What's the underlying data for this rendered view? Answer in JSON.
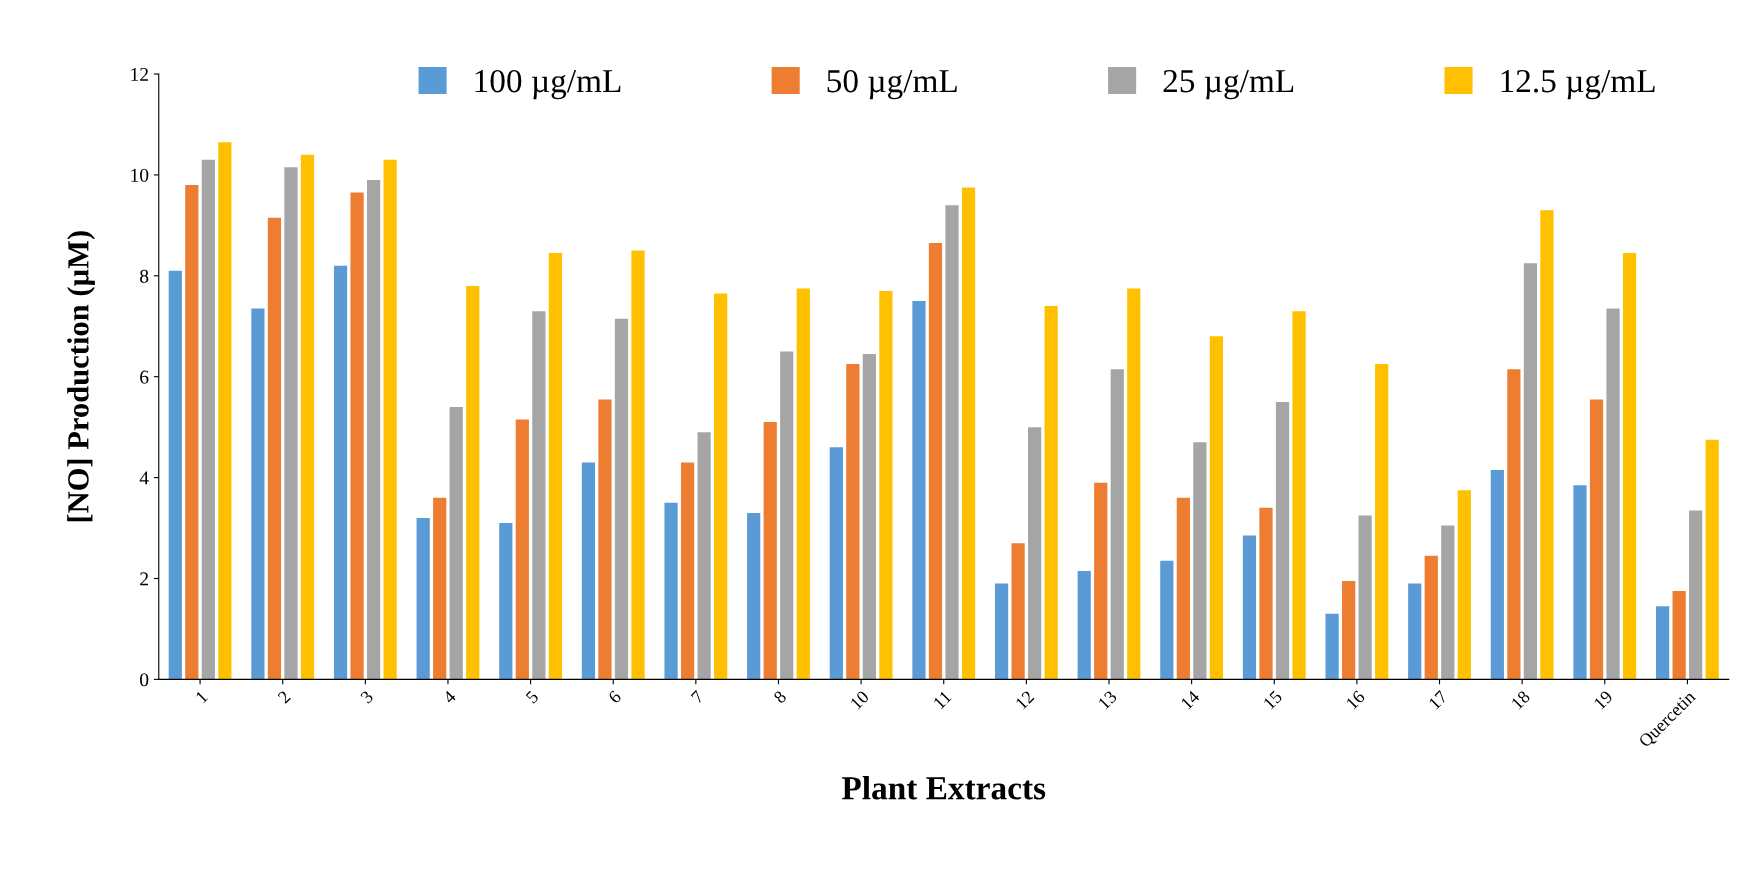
{
  "chart_data": {
    "type": "bar",
    "xlabel": "Plant Extracts",
    "ylabel": "[NO] Production (µM)",
    "categories": [
      "1",
      "2",
      "3",
      "4",
      "5",
      "6",
      "7",
      "8",
      "10",
      "11",
      "12",
      "13",
      "14",
      "15",
      "16",
      "17",
      "18",
      "19",
      "Quercetin"
    ],
    "series": [
      {
        "name": "100 µg/mL",
        "color": "#5b9bd5",
        "values": [
          8.1,
          7.35,
          8.2,
          3.2,
          3.1,
          4.3,
          3.5,
          3.3,
          4.6,
          7.5,
          1.9,
          2.15,
          2.35,
          2.85,
          1.3,
          1.9,
          4.15,
          3.85,
          1.45
        ]
      },
      {
        "name": "50 µg/mL",
        "color": "#ed7d31",
        "values": [
          9.8,
          9.15,
          9.65,
          3.6,
          5.15,
          5.55,
          4.3,
          5.1,
          6.25,
          8.65,
          2.7,
          3.9,
          3.6,
          3.4,
          1.95,
          2.45,
          6.15,
          5.55,
          1.75
        ]
      },
      {
        "name": "25 µg/mL",
        "color": "#a5a5a5",
        "values": [
          10.3,
          10.15,
          9.9,
          5.4,
          7.3,
          7.15,
          4.9,
          6.5,
          6.45,
          9.4,
          5.0,
          6.15,
          4.7,
          5.5,
          3.25,
          3.05,
          8.25,
          7.35,
          3.35
        ]
      },
      {
        "name": "12.5 µg/mL",
        "color": "#ffc000",
        "values": [
          10.65,
          10.4,
          10.3,
          7.8,
          8.45,
          8.5,
          7.65,
          7.75,
          7.7,
          9.75,
          7.4,
          7.75,
          6.8,
          7.3,
          6.25,
          3.75,
          9.3,
          8.45,
          4.75
        ]
      }
    ],
    "ylim": [
      0,
      12
    ],
    "yticks": [
      0,
      2,
      4,
      6,
      8,
      10,
      12
    ],
    "grid": false,
    "legend": "top"
  }
}
